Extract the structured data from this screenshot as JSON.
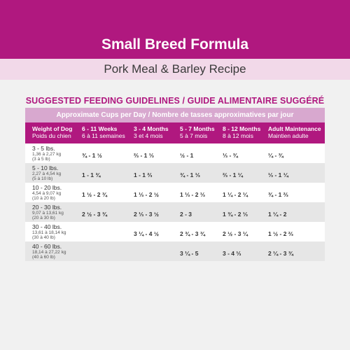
{
  "header": {
    "title": "Small Breed Formula",
    "subtitle": "Pork Meal & Barley Recipe"
  },
  "guidelines": {
    "heading": "SUGGESTED FEEDING GUIDELINES / GUIDE ALIMENTAIRE SUGGÉRÉ",
    "approx_label": "Approximate Cups per Day / Nombre de tasses approximatives par jour",
    "columns": [
      {
        "en": "Weight of Dog",
        "fr": "Poids du chien"
      },
      {
        "en": "6 - 11 Weeks",
        "fr": "6 à 11 semaines"
      },
      {
        "en": "3 - 4 Months",
        "fr": "3 et 4 mois"
      },
      {
        "en": "5 - 7 Months",
        "fr": "5 à 7 mois"
      },
      {
        "en": "8 - 12 Months",
        "fr": "8 à 12 mois"
      },
      {
        "en": "Adult Maintenance",
        "fr": "Maintien adulte"
      }
    ],
    "rows": [
      {
        "weight": "3 - 5 lbs.",
        "metric": "1,36 à 2,27 kg",
        "alt": "(3 à 5 lb)",
        "values": [
          "¾ - 1 ½",
          "⅔ - 1 ⅓",
          "½ - 1",
          "⅓ - ¾",
          "¼ - ¾"
        ]
      },
      {
        "weight": "5 - 10 lbs.",
        "metric": "2,27 à 4,54 kg",
        "alt": "(5 à 10 lb)",
        "values": [
          "1 - 1 ¾",
          "1 - 1 ⅔",
          "¾ - 1 ⅓",
          "⅔ - 1 ¼",
          "⅓ - 1 ¼"
        ]
      },
      {
        "weight": "10 - 20 lbs.",
        "metric": "4,54 à 9,07 kg",
        "alt": "(10 à 20 lb)",
        "values": [
          "1 ½ - 2 ¾",
          "1 ⅓ - 2 ½",
          "1 ⅓ - 2 ⅓",
          "1 ¼ - 2 ¼",
          "¾ - 1 ⅔"
        ]
      },
      {
        "weight": "20 - 30 lbs.",
        "metric": "9,07 à 13,61 kg",
        "alt": "(20 à 30 lb)",
        "values": [
          "2 ½ - 3 ¾",
          "2 ⅓ - 3 ½",
          "2 - 3",
          "1 ¾ - 2 ⅓",
          "1 ¼ - 2"
        ]
      },
      {
        "weight": "30 - 40 lbs.",
        "metric": "13,61 à 18,14 kg",
        "alt": "(30 à 40 lb)",
        "values": [
          "",
          "3 ¼ - 4 ½",
          "2 ¾ - 3 ¾",
          "2 ½ - 3 ¼",
          "1 ½ - 2 ⅔"
        ]
      },
      {
        "weight": "40 - 60 lbs.",
        "metric": "18,14 à 27,22 kg",
        "alt": "(40 à 60 lb)",
        "values": [
          "",
          "",
          "3 ¼ - 5",
          "3 - 4 ⅓",
          "2 ¼ - 3 ¾"
        ]
      }
    ]
  }
}
